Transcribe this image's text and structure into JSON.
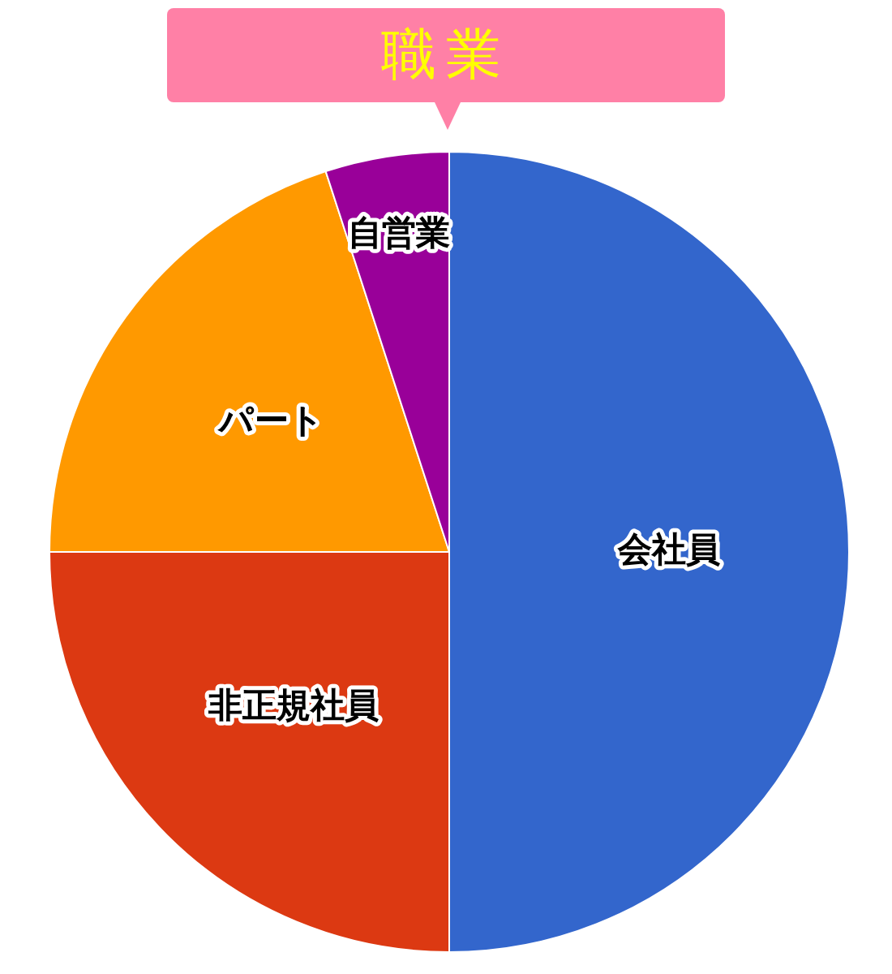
{
  "chart_data": {
    "type": "pie",
    "title": "職業",
    "categories": [
      "会社員",
      "非正規社員",
      "パート",
      "自営業"
    ],
    "values": [
      50,
      25,
      20,
      5
    ],
    "colors": [
      "#3366cc",
      "#dc3912",
      "#ff9900",
      "#990099"
    ],
    "legend": false
  }
}
